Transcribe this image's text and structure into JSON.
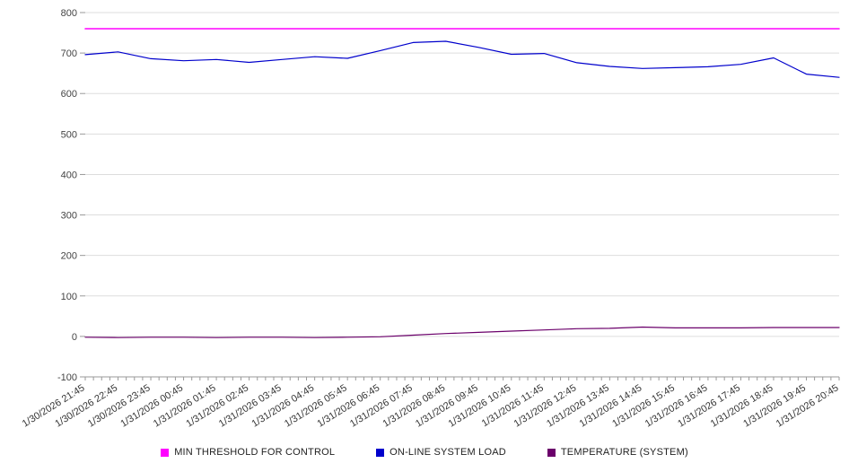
{
  "chart_data": {
    "type": "line",
    "title": "",
    "xlabel": "",
    "ylabel": "",
    "ylim": [
      -100,
      800
    ],
    "y_ticks": [
      800,
      700,
      600,
      500,
      400,
      300,
      200,
      100,
      0,
      -100
    ],
    "grid": true,
    "legend_position": "bottom",
    "x_labels": [
      "1/30/2026 21:45",
      "1/30/2026 22:45",
      "1/30/2026 23:45",
      "1/31/2026 00:45",
      "1/31/2026 01:45",
      "1/31/2026 02:45",
      "1/31/2026 03:45",
      "1/31/2026 04:45",
      "1/31/2026 05:45",
      "1/31/2026 06:45",
      "1/31/2026 07:45",
      "1/31/2026 08:45",
      "1/31/2026 09:45",
      "1/31/2026 10:45",
      "1/31/2026 11:45",
      "1/31/2026 12:45",
      "1/31/2026 13:45",
      "1/31/2026 14:45",
      "1/31/2026 15:45",
      "1/31/2026 16:45",
      "1/31/2026 17:45",
      "1/31/2026 18:45",
      "1/31/2026 19:45",
      "1/31/2026 20:45"
    ],
    "series": [
      {
        "name": "MIN THRESHOLD FOR CONTROL",
        "color": "#ff00ff",
        "values": [
          760,
          760,
          760,
          760,
          760,
          760,
          760,
          760,
          760,
          760,
          760,
          760,
          760,
          760,
          760,
          760,
          760,
          760,
          760,
          760,
          760,
          760,
          760,
          760
        ]
      },
      {
        "name": "ON-LINE SYSTEM LOAD",
        "color": "#0000cc",
        "values": [
          696,
          703,
          686,
          681,
          684,
          677,
          684,
          691,
          687,
          706,
          726,
          729,
          714,
          697,
          699,
          676,
          667,
          662,
          664,
          666,
          672,
          688,
          648,
          640
        ]
      },
      {
        "name": "TEMPERATURE (SYSTEM)",
        "color": "#6b006b",
        "values": [
          -2,
          -3,
          -2,
          -2,
          -3,
          -2,
          -2,
          -3,
          -2,
          -1,
          3,
          7,
          10,
          13,
          16,
          19,
          20,
          23,
          21,
          21,
          21,
          22,
          22,
          22
        ]
      }
    ],
    "axis_colors": {
      "grid": "#dddddd",
      "tick": "#999999",
      "label": "#444444"
    }
  }
}
